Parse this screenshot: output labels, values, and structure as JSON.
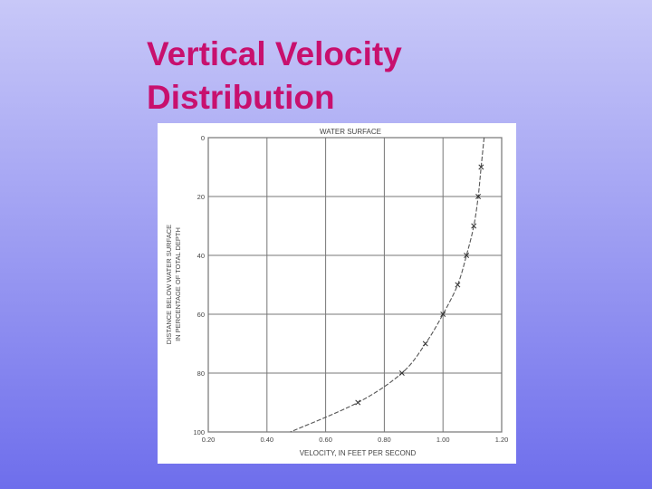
{
  "slide": {
    "title_line1": "Vertical Velocity",
    "title_line2": "Distribution"
  },
  "chart_data": {
    "type": "scatter",
    "title": "WATER SURFACE",
    "xlabel": "VELOCITY, IN  FEET  PER  SECOND",
    "ylabel_line1": "DISTANCE BELOW WATER SURFACE",
    "ylabel_line2": "IN PERCENTAGE OF TOTAL DEPTH",
    "xlim": [
      0.2,
      1.2
    ],
    "ylim": [
      0,
      100
    ],
    "y_inverted": true,
    "grid": true,
    "x_ticks": [
      "0.20",
      "0.40",
      "0.60",
      "0.80",
      "1.00",
      "1.20"
    ],
    "x_tick_values": [
      0.2,
      0.4,
      0.6,
      0.8,
      1.0,
      1.2
    ],
    "y_ticks": [
      "0",
      "20",
      "40",
      "60",
      "80",
      "100"
    ],
    "y_tick_values": [
      0,
      20,
      40,
      60,
      80,
      100
    ],
    "points": [
      {
        "x": 1.13,
        "y": 10
      },
      {
        "x": 1.12,
        "y": 20
      },
      {
        "x": 1.105,
        "y": 30
      },
      {
        "x": 1.08,
        "y": 40
      },
      {
        "x": 1.05,
        "y": 50
      },
      {
        "x": 1.0,
        "y": 60
      },
      {
        "x": 0.94,
        "y": 70
      },
      {
        "x": 0.86,
        "y": 80
      },
      {
        "x": 0.71,
        "y": 90
      }
    ],
    "curve": [
      {
        "x": 1.14,
        "y": 0
      },
      {
        "x": 1.13,
        "y": 10
      },
      {
        "x": 1.12,
        "y": 20
      },
      {
        "x": 1.105,
        "y": 30
      },
      {
        "x": 1.08,
        "y": 40
      },
      {
        "x": 1.05,
        "y": 50
      },
      {
        "x": 1.0,
        "y": 60
      },
      {
        "x": 0.94,
        "y": 70
      },
      {
        "x": 0.86,
        "y": 80
      },
      {
        "x": 0.71,
        "y": 90
      },
      {
        "x": 0.48,
        "y": 100
      }
    ]
  }
}
